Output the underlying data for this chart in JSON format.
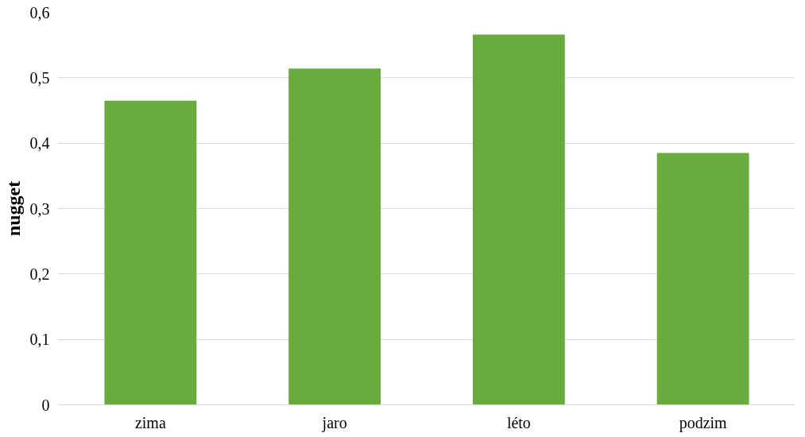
{
  "chart_data": {
    "type": "bar",
    "ylabel": "nugget",
    "categories": [
      "zima",
      "jaro",
      "léto",
      "podzim"
    ],
    "values": [
      0.465,
      0.514,
      0.566,
      0.385
    ],
    "color": "#6aab3f",
    "ylim": [
      0,
      0.6
    ],
    "yticks": [
      {
        "value": 0,
        "label": "0"
      },
      {
        "value": 0.1,
        "label": "0,1"
      },
      {
        "value": 0.2,
        "label": "0,2"
      },
      {
        "value": 0.3,
        "label": "0,3"
      },
      {
        "value": 0.4,
        "label": "0,4"
      },
      {
        "value": 0.5,
        "label": "0,5"
      },
      {
        "value": 0.6,
        "label": "0,6"
      }
    ],
    "grid": "y"
  }
}
